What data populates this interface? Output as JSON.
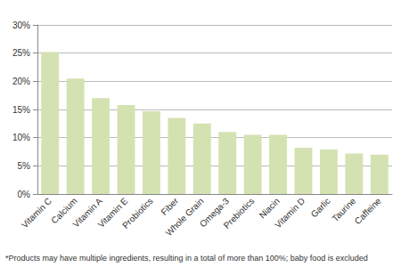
{
  "chart_data": {
    "type": "bar",
    "categories": [
      "Vitamin C",
      "Calcium",
      "Vitamin A",
      "Vitamin E",
      "Probiotics",
      "Fiber",
      "Whole Grain",
      "Omega-3",
      "Prebiotics",
      "Niacin",
      "Vitamin D",
      "Garlic",
      "Taurine",
      "Caffeine"
    ],
    "values": [
      25.2,
      20.5,
      17,
      15.8,
      14.7,
      13.5,
      12.5,
      11,
      10.5,
      10.5,
      8.2,
      7.9,
      7.2,
      7
    ],
    "color": "#d4e2b2",
    "ylim": [
      0,
      30
    ],
    "yticks": [
      {
        "value": 0,
        "label": "0%"
      },
      {
        "value": 5,
        "label": "5%"
      },
      {
        "value": 10,
        "label": "10%"
      },
      {
        "value": 15,
        "label": "15%"
      },
      {
        "value": 20,
        "label": "20%"
      },
      {
        "value": 25,
        "label": "25%"
      },
      {
        "value": 30,
        "label": "30%"
      }
    ],
    "grid": true,
    "annotation": "*Products may have multiple ingredients, resulting in a total of more than 100%; baby food is excluded"
  }
}
